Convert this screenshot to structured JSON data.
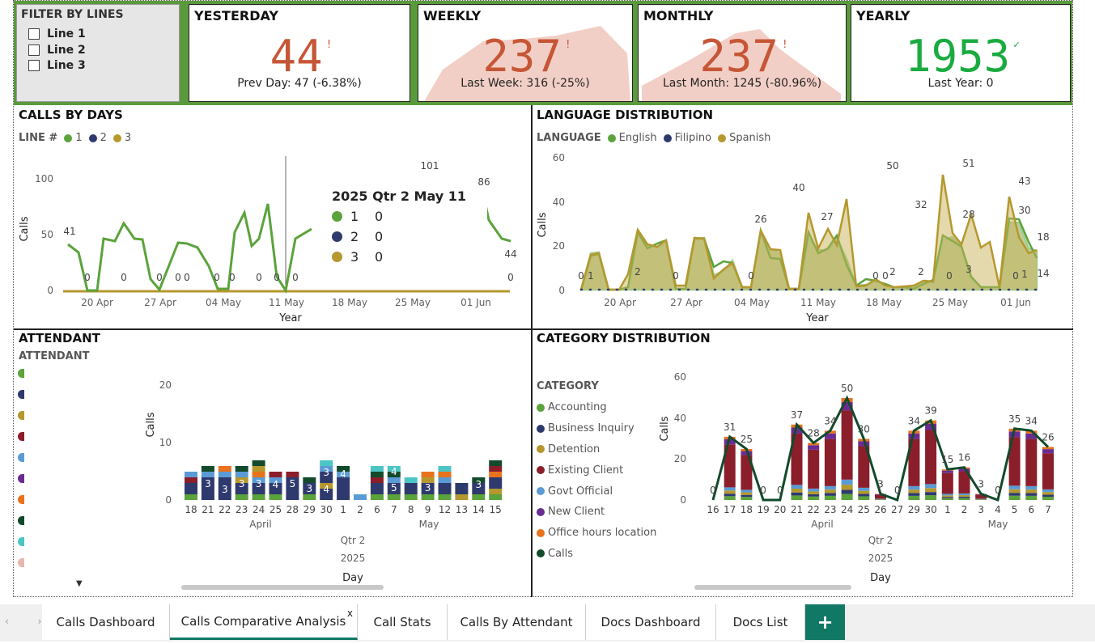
{
  "filter": {
    "title": "FILTER BY LINES",
    "options": [
      "Line 1",
      "Line 2",
      "Line 3"
    ]
  },
  "kpis": [
    {
      "title": "YESTERDAY",
      "value": "44",
      "flag": "!",
      "sub": "Prev Day: 47 (-6.38%)",
      "color": "#c65636"
    },
    {
      "title": "WEEKLY",
      "value": "237",
      "flag": "!",
      "sub": "Last Week: 316 (-25%)",
      "color": "#c65636"
    },
    {
      "title": "MONTHLY",
      "value": "237",
      "flag": "!",
      "sub": "Last Month: 1245 (-80.96%)",
      "color": "#c65636"
    },
    {
      "title": "YEARLY",
      "value": "1953",
      "flag": "✓",
      "sub": "Last Year: 0",
      "color": "#1aab40"
    }
  ],
  "calls_by_days": {
    "title": "CALLS BY DAYS",
    "legend_title": "LINE #",
    "legend": [
      {
        "name": "1",
        "color": "#5ba33b"
      },
      {
        "name": "2",
        "color": "#2e3a6e"
      },
      {
        "name": "3",
        "color": "#b5982e"
      }
    ],
    "ylabel": "Calls",
    "xlabel": "Year",
    "yticks": [
      "0",
      "50",
      "100"
    ],
    "xticks": [
      "20 Apr",
      "27 Apr",
      "04 May",
      "11 May",
      "18 May",
      "25 May",
      "01 Jun"
    ],
    "labels": [
      "41",
      "0",
      "0",
      "0",
      "0",
      "0",
      "0",
      "0",
      "0",
      "0",
      "0",
      "101",
      "86",
      "44",
      "0"
    ],
    "tooltip": {
      "header": "2025 Qtr 2 May 11",
      "rows": [
        {
          "name": "1",
          "value": "0",
          "color": "#5ba33b"
        },
        {
          "name": "2",
          "value": "0",
          "color": "#2e3a6e"
        },
        {
          "name": "3",
          "value": "0",
          "color": "#b5982e"
        }
      ]
    }
  },
  "language": {
    "title": "LANGUAGE DISTRIBUTION",
    "legend_title": "LANGUAGE",
    "legend": [
      {
        "name": "English",
        "color": "#5ba33b"
      },
      {
        "name": "Filipino",
        "color": "#2e3a6e"
      },
      {
        "name": "Spanish",
        "color": "#b5982e"
      }
    ],
    "ylabel": "Calls",
    "xlabel": "Year",
    "yticks": [
      "0",
      "20",
      "40",
      "60"
    ],
    "xticks": [
      "20 Apr",
      "27 Apr",
      "04 May",
      "11 May",
      "18 May",
      "25 May",
      "01 Jun"
    ],
    "labels": [
      "0",
      "1",
      "2",
      "0",
      "26",
      "40",
      "0",
      "27",
      "50",
      "0",
      "0",
      "2",
      "32",
      "2",
      "0",
      "51",
      "28",
      "3",
      "0",
      "43",
      "30",
      "1",
      "18",
      "14"
    ]
  },
  "attendant": {
    "title": "ATTENDANT",
    "legend_title": "ATTENDANT",
    "ylabel": "Calls",
    "xlabel": "Day",
    "yticks": [
      "0",
      "10",
      "20"
    ],
    "days": [
      "18",
      "21",
      "22",
      "23",
      "24",
      "25",
      "28",
      "29",
      "30",
      "1",
      "2",
      "6",
      "7",
      "8",
      "9",
      "12",
      "13",
      "14",
      "15"
    ],
    "months": [
      "April",
      "May"
    ],
    "quarter": "Qtr 2",
    "year": "2025",
    "labels": [
      "3",
      "3",
      "3",
      "3",
      "3",
      "4",
      "5",
      "3",
      "3",
      "4",
      "3",
      "5",
      "4",
      "3",
      "3",
      "4"
    ],
    "colors": [
      "#5ba33b",
      "#2e3a6e",
      "#b5982e",
      "#8b1e2b",
      "#5b9bd5",
      "#6a2c91",
      "#e8731c",
      "#124a2b",
      "#4cc5c5",
      "#e6b8b0"
    ]
  },
  "category": {
    "title": "CATEGORY DISTRIBUTION",
    "legend_title": "CATEGORY",
    "legend": [
      {
        "name": "Accounting",
        "color": "#5ba33b"
      },
      {
        "name": "Business Inquiry",
        "color": "#2e3a6e"
      },
      {
        "name": "Detention",
        "color": "#b5982e"
      },
      {
        "name": "Existing Client",
        "color": "#8b1e2b"
      },
      {
        "name": "Govt Official",
        "color": "#5b9bd5"
      },
      {
        "name": "New Client",
        "color": "#6a2c91"
      },
      {
        "name": "Office hours location",
        "color": "#e8731c"
      },
      {
        "name": "Calls",
        "color": "#124a2b"
      }
    ],
    "ylabel": "Calls",
    "xlabel": "Day",
    "yticks": [
      "0",
      "20",
      "40",
      "60"
    ],
    "days": [
      "16",
      "17",
      "18",
      "19",
      "20",
      "21",
      "22",
      "23",
      "24",
      "25",
      "26",
      "27",
      "29",
      "30",
      "1",
      "2",
      "3",
      "4",
      "5",
      "6",
      "7"
    ],
    "months": [
      "April",
      "May"
    ],
    "quarter": "Qtr 2",
    "year": "2025",
    "labels": [
      "0",
      "31",
      "25",
      "0",
      "0",
      "37",
      "28",
      "34",
      "50",
      "30",
      "3",
      "0",
      "34",
      "39",
      "15",
      "16",
      "3",
      "0",
      "35",
      "34",
      "26"
    ]
  },
  "tabs": {
    "items": [
      "Calls Dashboard",
      "Calls Comparative Analysis",
      "Call Stats",
      "Calls By Attendant",
      "Docs Dashboard",
      "Docs List"
    ],
    "active_index": 1,
    "close": "x",
    "add": "+"
  }
}
